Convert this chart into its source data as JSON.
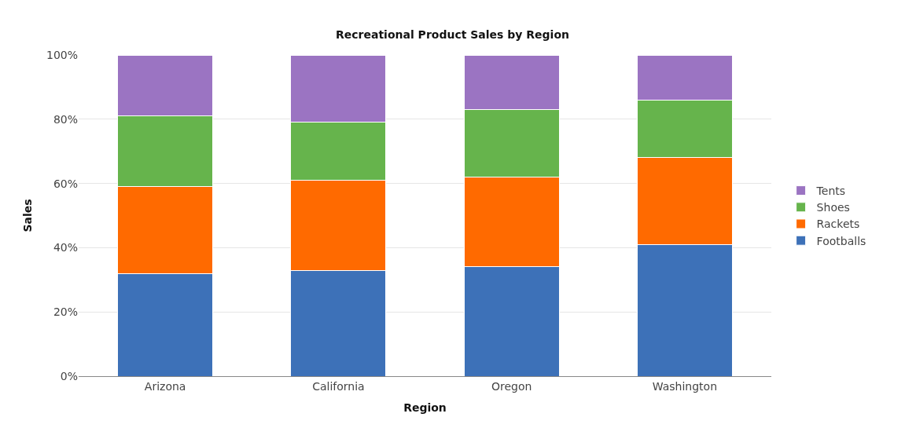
{
  "chart_data": {
    "type": "bar",
    "title": "Recreational Product Sales by Region",
    "xlabel": "Region",
    "ylabel": "Sales",
    "categories": [
      "Arizona",
      "California",
      "Oregon",
      "Washington"
    ],
    "stacked": true,
    "series": [
      {
        "name": "Footballs",
        "color": "#3d71b8",
        "values": [
          32,
          33,
          34,
          41
        ]
      },
      {
        "name": "Rackets",
        "color": "#ff6a00",
        "values": [
          27,
          28,
          28,
          27
        ]
      },
      {
        "name": "Shoes",
        "color": "#66b44c",
        "values": [
          22,
          18,
          21,
          18
        ]
      },
      {
        "name": "Tents",
        "color": "#9b74c2",
        "values": [
          19,
          21,
          17,
          14
        ]
      }
    ],
    "ylim": [
      0,
      100
    ],
    "yticks": [
      {
        "value": 0,
        "label": "0%"
      },
      {
        "value": 20,
        "label": "20%"
      },
      {
        "value": 40,
        "label": "40%"
      },
      {
        "value": 60,
        "label": "60%"
      },
      {
        "value": 80,
        "label": "80%"
      },
      {
        "value": 100,
        "label": "100%"
      }
    ],
    "grid": "y",
    "legend": "right"
  }
}
